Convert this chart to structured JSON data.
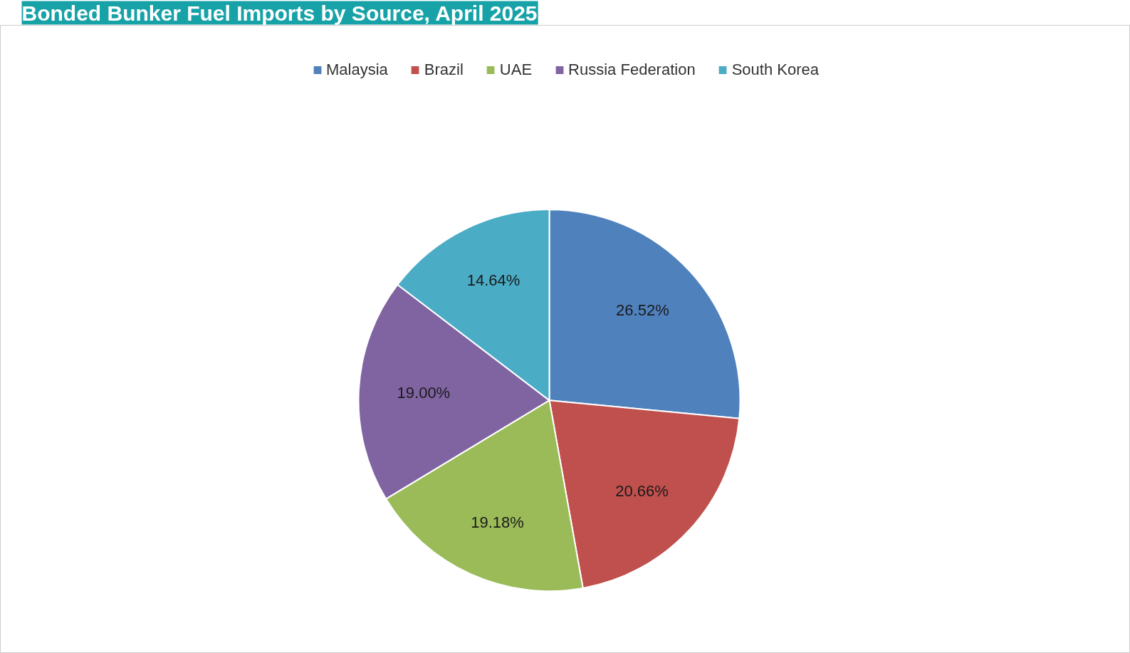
{
  "chart_data": {
    "type": "pie",
    "title": "Bonded Bunker Fuel Imports by Source, April 2025",
    "categories": [
      "Malaysia",
      "Brazil",
      "UAE",
      "Russia Federation",
      "South Korea"
    ],
    "values": [
      26.52,
      20.66,
      19.18,
      19.0,
      14.64
    ],
    "value_labels": [
      "26.52%",
      "20.66%",
      "19.18%",
      "19.00%",
      "14.64%"
    ],
    "colors": [
      "#4f81bd",
      "#c0504d",
      "#9bbb59",
      "#8064a2",
      "#4bacc6"
    ],
    "legend": "top"
  }
}
